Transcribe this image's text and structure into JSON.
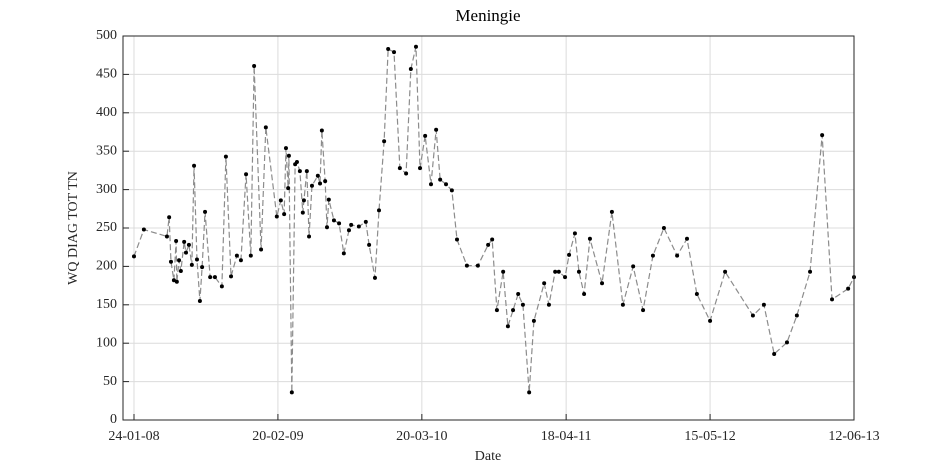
{
  "chart_data": {
    "type": "line",
    "title": "Meningie",
    "x_label": "Date",
    "y_label": "WQ DIAG TOT TN",
    "color": "#8c8c8c",
    "marker_color": "#000000",
    "line_style": "dashed",
    "grid": true,
    "xlim": [
      "2007-12-25",
      "2013-06-12"
    ],
    "xticks": [
      {
        "value": "2008-01-24",
        "label": "24-01-08"
      },
      {
        "value": "2009-02-20",
        "label": "20-02-09"
      },
      {
        "value": "2010-03-20",
        "label": "20-03-10"
      },
      {
        "value": "2011-04-18",
        "label": "18-04-11"
      },
      {
        "value": "2012-05-15",
        "label": "15-05-12"
      },
      {
        "value": "2013-06-12",
        "label": "12-06-13"
      }
    ],
    "ylim": [
      0,
      500
    ],
    "yticks": [
      0,
      50,
      100,
      150,
      200,
      250,
      300,
      350,
      400,
      450,
      500
    ],
    "x": [
      "2008-01-24",
      "2008-02-20",
      "2008-04-23",
      "2008-04-29",
      "2008-05-04",
      "2008-05-12",
      "2008-05-18",
      "2008-05-20",
      "2008-05-26",
      "2008-05-31",
      "2008-06-09",
      "2008-06-14",
      "2008-06-22",
      "2008-06-30",
      "2008-07-06",
      "2008-07-14",
      "2008-07-22",
      "2008-07-28",
      "2008-08-05",
      "2008-08-19",
      "2008-09-01",
      "2008-09-20",
      "2008-10-01",
      "2008-10-15",
      "2008-10-31",
      "2008-11-11",
      "2008-11-25",
      "2008-12-08",
      "2008-12-17",
      "2009-01-05",
      "2009-01-18",
      "2009-02-17",
      "2009-02-28",
      "2009-03-09",
      "2009-03-14",
      "2009-03-20",
      "2009-03-22",
      "2009-03-30",
      "2009-04-08",
      "2009-04-13",
      "2009-04-21",
      "2009-04-29",
      "2009-05-02",
      "2009-05-10",
      "2009-05-16",
      "2009-05-24",
      "2009-06-09",
      "2009-06-15",
      "2009-06-20",
      "2009-06-29",
      "2009-07-04",
      "2009-07-09",
      "2009-07-23",
      "2009-08-06",
      "2009-08-19",
      "2009-09-02",
      "2009-09-08",
      "2009-09-29",
      "2009-10-18",
      "2009-10-27",
      "2009-11-12",
      "2009-11-23",
      "2009-12-07",
      "2009-12-18",
      "2010-01-03",
      "2010-01-19",
      "2010-02-05",
      "2010-02-18",
      "2010-03-04",
      "2010-03-15",
      "2010-03-29",
      "2010-04-14",
      "2010-04-28",
      "2010-05-09",
      "2010-05-25",
      "2010-06-10",
      "2010-06-24",
      "2010-07-21",
      "2010-08-20",
      "2010-09-17",
      "2010-09-28",
      "2010-10-11",
      "2010-10-28",
      "2010-11-10",
      "2010-11-24",
      "2010-12-08",
      "2010-12-21",
      "2011-01-07",
      "2011-01-20",
      "2011-02-17",
      "2011-03-02",
      "2011-03-19",
      "2011-03-29",
      "2011-04-15",
      "2011-04-26",
      "2011-05-12",
      "2011-05-23",
      "2011-06-06",
      "2011-06-22",
      "2011-07-25",
      "2011-08-21",
      "2011-09-20",
      "2011-10-18",
      "2011-11-14",
      "2011-12-11",
      "2012-01-10",
      "2012-02-15",
      "2012-03-13",
      "2012-04-09",
      "2012-05-15",
      "2012-06-25",
      "2012-09-09",
      "2012-10-09",
      "2012-11-06",
      "2012-12-11",
      "2013-01-07",
      "2013-02-12",
      "2013-03-17",
      "2013-04-13",
      "2013-05-27",
      "2013-06-12"
    ],
    "values": [
      213,
      248,
      239,
      264,
      206,
      182,
      233,
      180,
      208,
      194,
      232,
      218,
      228,
      202,
      331,
      209,
      155,
      199,
      271,
      186,
      186,
      174,
      343,
      187,
      214,
      208,
      320,
      214,
      461,
      222,
      381,
      265,
      286,
      268,
      354,
      302,
      344,
      36,
      333,
      336,
      324,
      270,
      286,
      324,
      239,
      305,
      318,
      308,
      377,
      311,
      251,
      287,
      260,
      256,
      217,
      247,
      254,
      252,
      258,
      228,
      185,
      273,
      363,
      483,
      479,
      328,
      321,
      457,
      486,
      328,
      370,
      307,
      378,
      313,
      307,
      299,
      235,
      201,
      201,
      228,
      235,
      143,
      193,
      122,
      143,
      164,
      150,
      36,
      129,
      178,
      150,
      193,
      193,
      186,
      215,
      243,
      193,
      164,
      236,
      178,
      271,
      150,
      200,
      143,
      214,
      250,
      214,
      236,
      164,
      129,
      193,
      136,
      150,
      86,
      101,
      136,
      193,
      371,
      157,
      171,
      186
    ]
  }
}
